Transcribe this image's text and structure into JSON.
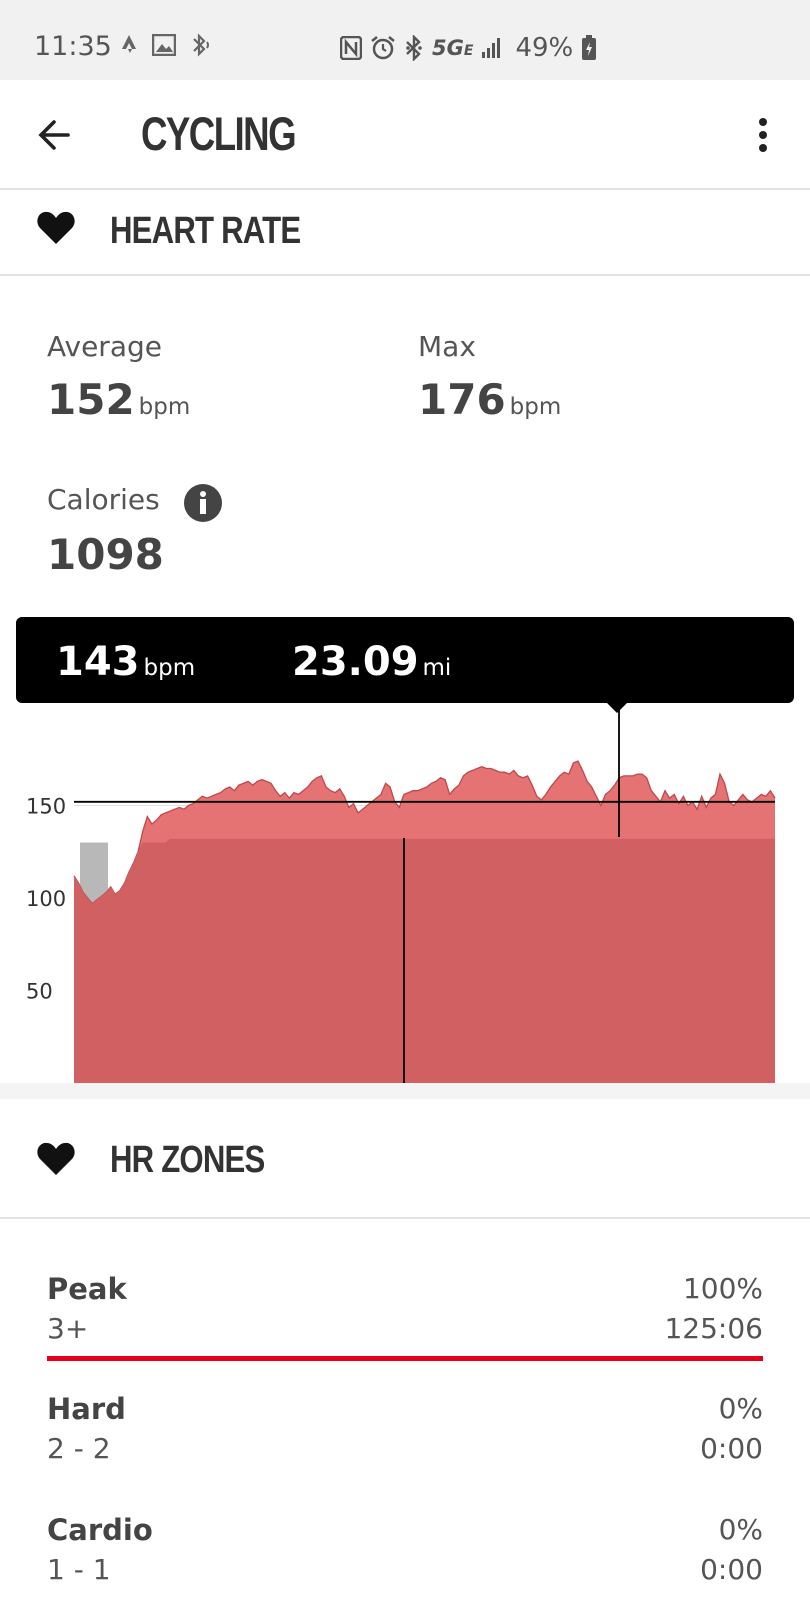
{
  "status_bar": {
    "time": "11:35",
    "network": "5G",
    "network_sub": "E",
    "battery": "49%"
  },
  "app_bar": {
    "title": "CYCLING",
    "back_icon": "arrow-left-icon",
    "more_icon": "more-vert-icon"
  },
  "heart_rate": {
    "header": "HEART RATE",
    "average_label": "Average",
    "average_value": "152",
    "average_unit": "bpm",
    "max_label": "Max",
    "max_value": "176",
    "max_unit": "bpm",
    "calories_label": "Calories",
    "calories_value": "1098"
  },
  "tooltip": {
    "hr_value": "143",
    "hr_unit": "bpm",
    "distance_value": "23.09",
    "distance_unit": "mi"
  },
  "chart_data": {
    "type": "area",
    "y_ticks": [
      "150",
      "100",
      "50"
    ],
    "ylim": [
      0,
      180
    ],
    "average_line": 152,
    "grey_zone_value": 130,
    "colors": {
      "area": "#d16062",
      "area_top": "#e57373",
      "grey": "#b8b8b8",
      "line": "#000000"
    },
    "heart_rate_series": [
      112,
      108,
      103,
      100,
      97,
      99,
      101,
      103,
      106,
      102,
      104,
      108,
      114,
      119,
      125,
      136,
      144,
      140,
      142,
      145,
      146,
      147,
      148,
      149,
      148,
      150,
      151,
      153,
      155,
      154,
      155,
      156,
      157,
      159,
      160,
      158,
      161,
      162,
      163,
      161,
      163,
      164,
      163,
      162,
      158,
      155,
      157,
      154,
      157,
      156,
      158,
      160,
      163,
      165,
      166,
      160,
      158,
      157,
      159,
      155,
      149,
      151,
      146,
      148,
      150,
      152,
      154,
      156,
      162,
      160,
      152,
      149,
      156,
      157,
      158,
      158,
      159,
      160,
      162,
      163,
      165,
      164,
      156,
      159,
      161,
      166,
      168,
      169,
      170,
      171,
      170,
      170,
      169,
      168,
      168,
      167,
      169,
      166,
      165,
      166,
      161,
      155,
      153,
      156,
      160,
      163,
      166,
      168,
      167,
      173,
      174,
      169,
      163,
      160,
      155,
      150,
      156,
      158,
      161,
      165,
      166,
      166,
      166,
      167,
      167,
      165,
      158,
      155,
      152,
      158,
      154,
      156,
      151,
      155,
      150,
      152,
      148,
      155,
      149,
      154,
      156,
      167,
      162,
      152,
      150,
      153,
      156,
      153,
      152,
      154,
      156,
      155,
      158,
      154
    ]
  },
  "hr_zones": {
    "header": "HR ZONES",
    "zones": [
      {
        "name": "Peak",
        "range": "3+",
        "percent": "100%",
        "time": "125:06",
        "fraction": 1.0
      },
      {
        "name": "Hard",
        "range": "2 - 2",
        "percent": "0%",
        "time": "0:00",
        "fraction": 0.0
      },
      {
        "name": "Cardio",
        "range": "1 - 1",
        "percent": "0%",
        "time": "0:00",
        "fraction": 0.0
      }
    ]
  }
}
